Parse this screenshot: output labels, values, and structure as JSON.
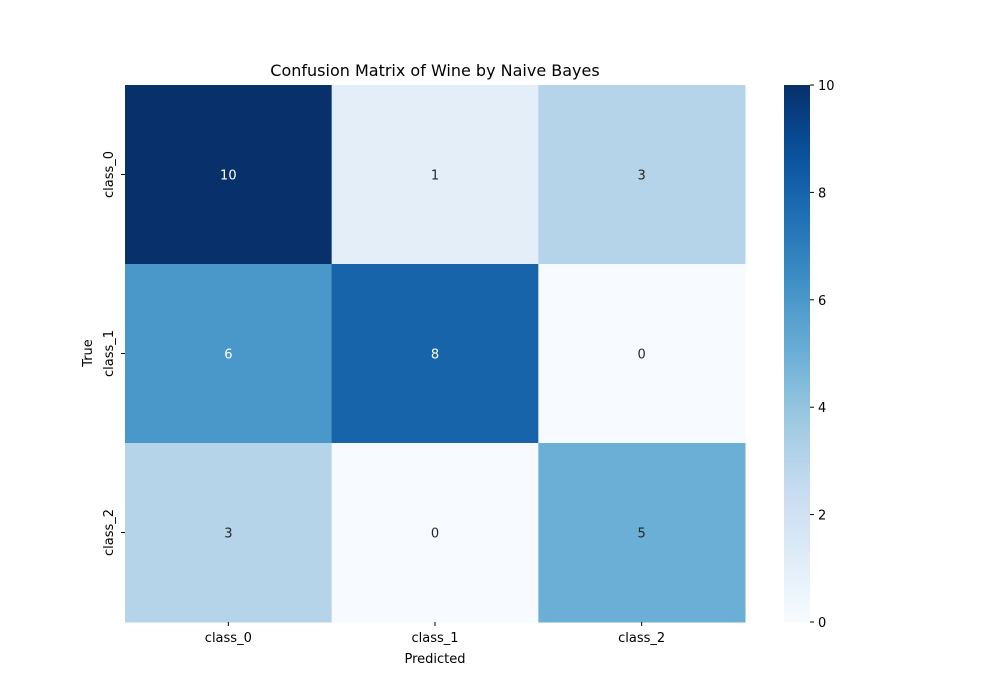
{
  "chart_data": {
    "type": "heatmap",
    "title": "Confusion Matrix of Wine by Naive Bayes",
    "xlabel": "Predicted",
    "ylabel": "True",
    "x_categories": [
      "class_0",
      "class_1",
      "class_2"
    ],
    "y_categories": [
      "class_0",
      "class_1",
      "class_2"
    ],
    "values": [
      [
        10,
        1,
        3
      ],
      [
        6,
        8,
        0
      ],
      [
        3,
        0,
        5
      ]
    ],
    "colorbar": {
      "range": [
        0,
        10
      ],
      "ticks": [
        0,
        2,
        4,
        6,
        8,
        10
      ],
      "colormap": "Blues"
    },
    "annotations": true
  }
}
